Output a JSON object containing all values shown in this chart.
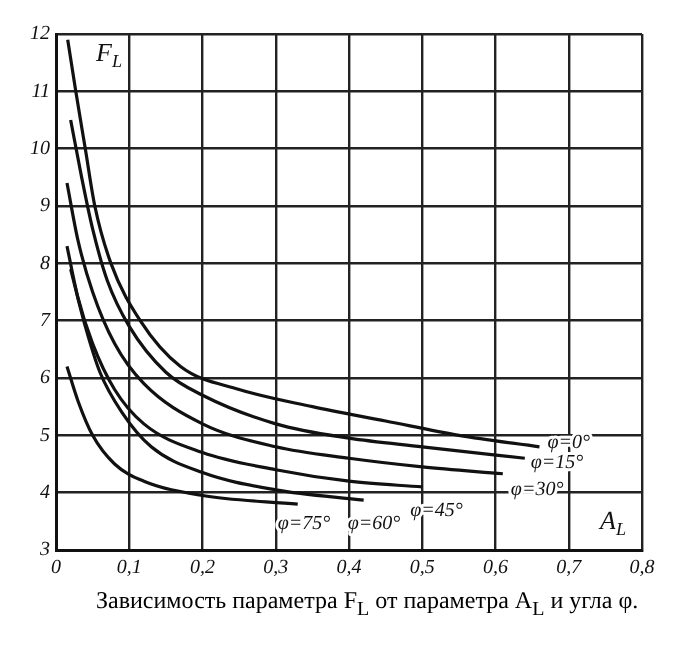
{
  "chart_data": {
    "type": "line",
    "xlabel": "A$_{L}$",
    "ylabel": "F$_{L}$",
    "xlim": [
      0,
      0.8
    ],
    "ylim": [
      3,
      12
    ],
    "xticks": [
      0,
      {
        "value": 0.1,
        "label": "0,1"
      },
      {
        "value": 0.2,
        "label": "0,2"
      },
      {
        "value": 0.3,
        "label": "0,3"
      },
      {
        "value": 0.4,
        "label": "0,4"
      },
      {
        "value": 0.5,
        "label": "0,5"
      },
      {
        "value": 0.6,
        "label": "0,6"
      },
      {
        "value": 0.7,
        "label": "0,7"
      },
      {
        "value": 0.8,
        "label": "0,8"
      }
    ],
    "yticks": [
      3,
      4,
      5,
      6,
      7,
      8,
      9,
      10,
      11,
      12
    ],
    "grid": true,
    "legend": false,
    "marker": "none",
    "line_style": "solid",
    "series": [
      {
        "name": "φ=0°",
        "color": "#111111",
        "x": [
          0.016,
          0.027,
          0.04,
          0.053,
          0.075,
          0.115,
          0.17,
          0.25,
          0.35,
          0.45,
          0.55,
          0.66
        ],
        "values": [
          11.9,
          11,
          10,
          9,
          8,
          7,
          6.2,
          5.8,
          5.5,
          5.25,
          5.0,
          4.8
        ]
      },
      {
        "name": "φ=15°",
        "color": "#111111",
        "x": [
          0.02,
          0.035,
          0.05,
          0.07,
          0.1,
          0.15,
          0.2,
          0.3,
          0.4,
          0.5,
          0.64
        ],
        "values": [
          10.5,
          9.5,
          8.6,
          7.7,
          6.9,
          6.1,
          5.7,
          5.2,
          4.95,
          4.8,
          4.6
        ]
      },
      {
        "name": "φ=30°",
        "color": "#111111",
        "x": [
          0.015,
          0.03,
          0.05,
          0.08,
          0.12,
          0.2,
          0.3,
          0.4,
          0.5,
          0.61
        ],
        "values": [
          9.4,
          8.4,
          7.5,
          6.6,
          5.9,
          5.2,
          4.8,
          4.6,
          4.45,
          4.33
        ]
      },
      {
        "name": "φ=45°",
        "color": "#111111",
        "x": [
          0.015,
          0.03,
          0.05,
          0.08,
          0.12,
          0.2,
          0.3,
          0.4,
          0.5
        ],
        "values": [
          8.3,
          7.4,
          6.6,
          5.8,
          5.2,
          4.7,
          4.4,
          4.2,
          4.1
        ]
      },
      {
        "name": "φ=60°",
        "color": "#111111",
        "x": [
          0.02,
          0.04,
          0.06,
          0.09,
          0.13,
          0.2,
          0.3,
          0.42
        ],
        "values": [
          7.9,
          6.9,
          6.1,
          5.4,
          4.8,
          4.35,
          4.05,
          3.87
        ]
      },
      {
        "name": "φ=75°",
        "color": "#111111",
        "x": [
          0.015,
          0.03,
          0.05,
          0.08,
          0.12,
          0.2,
          0.33
        ],
        "values": [
          6.2,
          5.6,
          5.0,
          4.5,
          4.2,
          3.95,
          3.8
        ]
      }
    ],
    "annotations": [
      "Зависимость параметра F$_{L}$ от параметра A$_{L}$ и угла φ."
    ]
  }
}
